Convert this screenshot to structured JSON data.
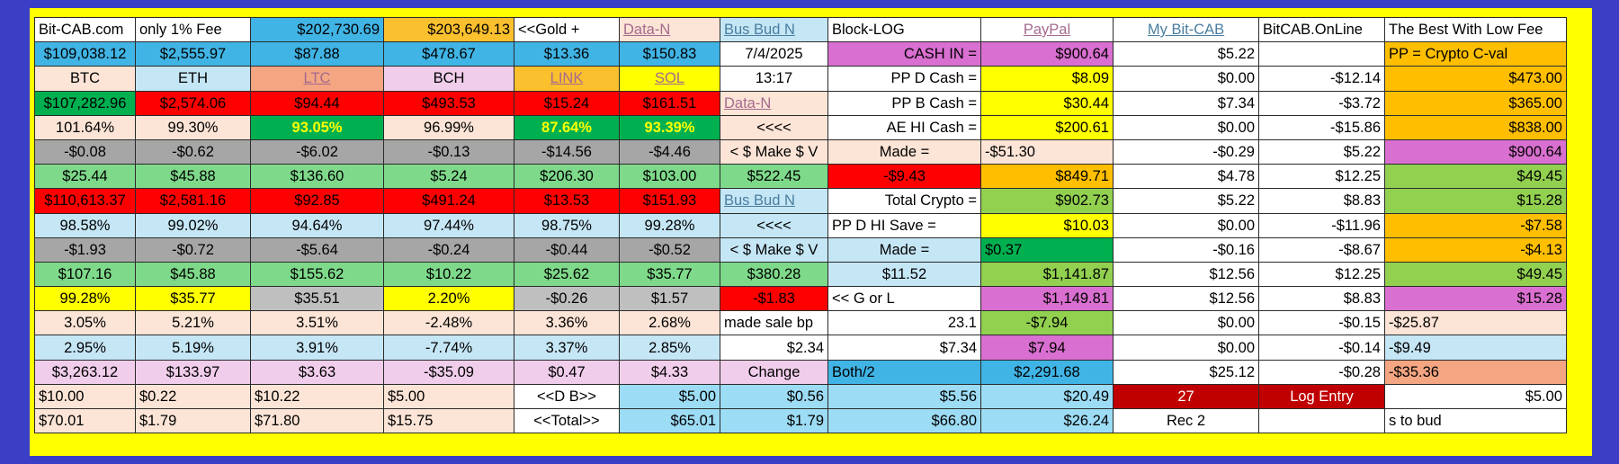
{
  "palette": {
    "frame": "#3b3fc6",
    "border": "#ffff00",
    "peach": "#fce4d6",
    "lightblue": "#c5e6f5",
    "skyblue": "#40b4e5",
    "midblue": "#9ddcf5",
    "orange": "#fbc02d",
    "amber": "#ffbf00",
    "lilac": "#f0cdea",
    "magenta": "#d96fd0",
    "gray": "#a6a6a6",
    "silver": "#bfbfbf",
    "green": "#7ed98a",
    "darkgreen": "#00b050",
    "lime": "#92d050",
    "yellow": "#ffff00",
    "red": "#ff0000",
    "darkred": "#c00000",
    "salmon": "#f4a582",
    "white": "#ffffff",
    "link_blue": "#4a7ea0",
    "link_mauve": "#a46a8e"
  },
  "columns": [
    112,
    128,
    148,
    145,
    117,
    112,
    120,
    170,
    147,
    162,
    140,
    202
  ],
  "rows": [
    [
      {
        "text": "Bit-CAB.com"
      },
      {
        "text": "only 1% Fee"
      },
      {
        "text": "$202,730.69",
        "bg": "skyblue",
        "align": "right"
      },
      {
        "text": "$203,649.13",
        "bg": "orange",
        "align": "right"
      },
      {
        "text": "<<Gold +"
      },
      {
        "text": "Data-N",
        "bg": "peach",
        "link": true,
        "color": "link_mauve"
      },
      {
        "text": "Bus Bud N",
        "bg": "lightblue",
        "link": true,
        "color": "link_blue"
      },
      {
        "text": "Block-LOG"
      },
      {
        "text": "PayPal",
        "align": "center",
        "link": true,
        "color": "link_mauve"
      },
      {
        "text": "My Bit-CAB",
        "align": "center",
        "link": true,
        "color": "link_blue"
      },
      {
        "text": "BitCAB.OnLine"
      },
      {
        "text": "The Best With Low Fee"
      }
    ],
    [
      {
        "text": "$109,038.12",
        "bg": "skyblue",
        "align": "center"
      },
      {
        "text": "$2,555.97",
        "bg": "skyblue",
        "align": "center"
      },
      {
        "text": "$87.88",
        "bg": "skyblue",
        "align": "center"
      },
      {
        "text": "$478.67",
        "bg": "skyblue",
        "align": "center"
      },
      {
        "text": "$13.36",
        "bg": "skyblue",
        "align": "center"
      },
      {
        "text": "$150.83",
        "bg": "skyblue",
        "align": "center"
      },
      {
        "text": "7/4/2025",
        "align": "center"
      },
      {
        "text": "CASH IN =",
        "bg": "magenta",
        "align": "right"
      },
      {
        "text": "$900.64",
        "bg": "magenta",
        "align": "right"
      },
      {
        "text": "$5.22",
        "align": "right"
      },
      {
        "text": ""
      },
      {
        "text": "PP = Crypto C-val",
        "bg": "amber"
      }
    ],
    [
      {
        "text": "BTC",
        "bg": "peach",
        "align": "center"
      },
      {
        "text": "ETH",
        "bg": "lightblue",
        "align": "center"
      },
      {
        "text": "LTC",
        "bg": "salmon",
        "align": "center",
        "link": true,
        "color": "link_mauve"
      },
      {
        "text": "BCH",
        "bg": "lilac",
        "align": "center"
      },
      {
        "text": "LINK",
        "bg": "orange",
        "align": "center",
        "link": true,
        "color": "link_mauve"
      },
      {
        "text": "SOL",
        "bg": "yellow",
        "align": "center",
        "link": true,
        "color": "link_mauve"
      },
      {
        "text": "13:17",
        "align": "center"
      },
      {
        "text": "PP  D  Cash =",
        "align": "right"
      },
      {
        "text": "$8.09",
        "bg": "yellow",
        "align": "right"
      },
      {
        "text": "$0.00",
        "align": "right"
      },
      {
        "text": "-$12.14",
        "align": "right"
      },
      {
        "text": "$473.00",
        "bg": "amber",
        "align": "right"
      }
    ],
    [
      {
        "text": "$107,282.96",
        "bg": "darkgreen",
        "align": "center"
      },
      {
        "text": "$2,574.06",
        "bg": "red",
        "align": "center"
      },
      {
        "text": "$94.44",
        "bg": "red",
        "align": "center"
      },
      {
        "text": "$493.53",
        "bg": "red",
        "align": "center"
      },
      {
        "text": "$15.24",
        "bg": "red",
        "align": "center"
      },
      {
        "text": "$161.51",
        "bg": "red",
        "align": "center"
      },
      {
        "text": "Data-N",
        "bg": "peach",
        "link": true,
        "color": "link_mauve"
      },
      {
        "text": "PP  B  Cash =",
        "align": "right"
      },
      {
        "text": "$30.44",
        "bg": "yellow",
        "align": "right"
      },
      {
        "text": "$7.34",
        "align": "right"
      },
      {
        "text": "-$3.72",
        "align": "right"
      },
      {
        "text": "$365.00",
        "bg": "amber",
        "align": "right"
      }
    ],
    [
      {
        "text": "101.64%",
        "bg": "peach",
        "align": "center"
      },
      {
        "text": "99.30%",
        "bg": "peach",
        "align": "center"
      },
      {
        "text": "93.05%",
        "bg": "darkgreen",
        "align": "center",
        "bold": true,
        "color": "yellow"
      },
      {
        "text": "96.99%",
        "bg": "peach",
        "align": "center"
      },
      {
        "text": "87.64%",
        "bg": "darkgreen",
        "align": "center",
        "bold": true,
        "color": "yellow"
      },
      {
        "text": "93.39%",
        "bg": "darkgreen",
        "align": "center",
        "bold": true,
        "color": "yellow"
      },
      {
        "text": "<<<<",
        "bg": "peach",
        "align": "center"
      },
      {
        "text": "AE HI Cash =",
        "align": "right"
      },
      {
        "text": "$200.61",
        "bg": "yellow",
        "align": "right"
      },
      {
        "text": "$0.00",
        "align": "right"
      },
      {
        "text": "-$15.86",
        "align": "right"
      },
      {
        "text": "$838.00",
        "bg": "amber",
        "align": "right"
      }
    ],
    [
      {
        "text": "-$0.08",
        "bg": "gray",
        "align": "center"
      },
      {
        "text": "-$0.62",
        "bg": "gray",
        "align": "center"
      },
      {
        "text": "-$6.02",
        "bg": "gray",
        "align": "center"
      },
      {
        "text": "-$0.13",
        "bg": "gray",
        "align": "center"
      },
      {
        "text": "-$14.56",
        "bg": "gray",
        "align": "center"
      },
      {
        "text": "-$4.46",
        "bg": "gray",
        "align": "center"
      },
      {
        "text": "< $ Make $ V",
        "bg": "peach",
        "align": "center"
      },
      {
        "text": "Made =",
        "bg": "peach",
        "align": "center"
      },
      {
        "text": "-$51.30",
        "bg": "peach"
      },
      {
        "text": "-$0.29",
        "align": "right"
      },
      {
        "text": "$5.22",
        "align": "right"
      },
      {
        "text": "$900.64",
        "bg": "magenta",
        "align": "right"
      }
    ],
    [
      {
        "text": "$25.44",
        "bg": "green",
        "align": "center"
      },
      {
        "text": "$45.88",
        "bg": "green",
        "align": "center"
      },
      {
        "text": "$136.60",
        "bg": "green",
        "align": "center"
      },
      {
        "text": "$5.24",
        "bg": "green",
        "align": "center"
      },
      {
        "text": "$206.30",
        "bg": "green",
        "align": "center"
      },
      {
        "text": "$103.00",
        "bg": "green",
        "align": "center"
      },
      {
        "text": "$522.45",
        "bg": "green",
        "align": "center"
      },
      {
        "text": "-$9.43",
        "bg": "red",
        "align": "center"
      },
      {
        "text": "$849.71",
        "bg": "amber",
        "align": "right"
      },
      {
        "text": "$4.78",
        "align": "right"
      },
      {
        "text": "$12.25",
        "align": "right"
      },
      {
        "text": "$49.45",
        "bg": "lime",
        "align": "right"
      }
    ],
    [
      {
        "text": "$110,613.37",
        "bg": "red",
        "align": "center"
      },
      {
        "text": "$2,581.16",
        "bg": "red",
        "align": "center"
      },
      {
        "text": "$92.85",
        "bg": "red",
        "align": "center"
      },
      {
        "text": "$491.24",
        "bg": "red",
        "align": "center"
      },
      {
        "text": "$13.53",
        "bg": "red",
        "align": "center"
      },
      {
        "text": "$151.93",
        "bg": "red",
        "align": "center"
      },
      {
        "text": "Bus Bud N",
        "bg": "lightblue",
        "link": true,
        "color": "link_blue"
      },
      {
        "text": "Total Crypto =",
        "align": "right"
      },
      {
        "text": "$902.73",
        "bg": "lime",
        "align": "right"
      },
      {
        "text": "$5.22",
        "align": "right"
      },
      {
        "text": "$8.83",
        "align": "right"
      },
      {
        "text": "$15.28",
        "bg": "lime",
        "align": "right"
      }
    ],
    [
      {
        "text": "98.58%",
        "bg": "lightblue",
        "align": "center"
      },
      {
        "text": "99.02%",
        "bg": "lightblue",
        "align": "center"
      },
      {
        "text": "94.64%",
        "bg": "lightblue",
        "align": "center"
      },
      {
        "text": "97.44%",
        "bg": "lightblue",
        "align": "center"
      },
      {
        "text": "98.75%",
        "bg": "lightblue",
        "align": "center"
      },
      {
        "text": "99.28%",
        "bg": "lightblue",
        "align": "center"
      },
      {
        "text": "<<<<",
        "bg": "lightblue",
        "align": "center"
      },
      {
        "text": "PP D HI Save ="
      },
      {
        "text": "$10.03",
        "bg": "yellow",
        "align": "right"
      },
      {
        "text": "$0.00",
        "align": "right"
      },
      {
        "text": "-$11.96",
        "align": "right"
      },
      {
        "text": "-$7.58",
        "bg": "amber",
        "align": "right"
      }
    ],
    [
      {
        "text": "-$1.93",
        "bg": "gray",
        "align": "center"
      },
      {
        "text": "-$0.72",
        "bg": "gray",
        "align": "center"
      },
      {
        "text": "-$5.64",
        "bg": "gray",
        "align": "center"
      },
      {
        "text": "-$0.24",
        "bg": "gray",
        "align": "center"
      },
      {
        "text": "-$0.44",
        "bg": "gray",
        "align": "center"
      },
      {
        "text": "-$0.52",
        "bg": "gray",
        "align": "center"
      },
      {
        "text": "< $ Make $ V",
        "bg": "lightblue",
        "align": "center"
      },
      {
        "text": "Made =",
        "bg": "lightblue",
        "align": "center"
      },
      {
        "text": "$0.37",
        "bg": "darkgreen"
      },
      {
        "text": "-$0.16",
        "align": "right"
      },
      {
        "text": "-$8.67",
        "align": "right"
      },
      {
        "text": "-$4.13",
        "bg": "amber",
        "align": "right"
      }
    ],
    [
      {
        "text": "$107.16",
        "bg": "green",
        "align": "center"
      },
      {
        "text": "$45.88",
        "bg": "green",
        "align": "center"
      },
      {
        "text": "$155.62",
        "bg": "green",
        "align": "center"
      },
      {
        "text": "$10.22",
        "bg": "green",
        "align": "center"
      },
      {
        "text": "$25.62",
        "bg": "green",
        "align": "center"
      },
      {
        "text": "$35.77",
        "bg": "green",
        "align": "center"
      },
      {
        "text": "$380.28",
        "bg": "green",
        "align": "center"
      },
      {
        "text": "$11.52",
        "bg": "lightblue",
        "align": "center"
      },
      {
        "text": "$1,141.87",
        "bg": "lime",
        "align": "right"
      },
      {
        "text": "$12.56",
        "align": "right"
      },
      {
        "text": "$12.25",
        "align": "right"
      },
      {
        "text": "$49.45",
        "bg": "lime",
        "align": "right"
      }
    ],
    [
      {
        "text": "99.28%",
        "bg": "yellow",
        "align": "center"
      },
      {
        "text": "$35.77",
        "bg": "yellow",
        "align": "center"
      },
      {
        "text": "$35.51",
        "bg": "silver",
        "align": "center"
      },
      {
        "text": "2.20%",
        "bg": "yellow",
        "align": "center"
      },
      {
        "text": "-$0.26",
        "bg": "silver",
        "align": "center"
      },
      {
        "text": "$1.57",
        "bg": "silver",
        "align": "center"
      },
      {
        "text": "-$1.83",
        "bg": "red",
        "align": "center"
      },
      {
        "text": "<< G or L"
      },
      {
        "text": "$1,149.81",
        "bg": "magenta",
        "align": "right"
      },
      {
        "text": "$12.56",
        "align": "right"
      },
      {
        "text": "$8.83",
        "align": "right"
      },
      {
        "text": "$15.28",
        "bg": "magenta",
        "align": "right"
      }
    ],
    [
      {
        "text": "3.05%",
        "bg": "peach",
        "align": "center"
      },
      {
        "text": "5.21%",
        "bg": "peach",
        "align": "center"
      },
      {
        "text": "3.51%",
        "bg": "peach",
        "align": "center"
      },
      {
        "text": "-2.48%",
        "bg": "peach",
        "align": "center"
      },
      {
        "text": "3.36%",
        "bg": "peach",
        "align": "center"
      },
      {
        "text": "2.68%",
        "bg": "peach",
        "align": "center"
      },
      {
        "text": "made sale bp"
      },
      {
        "text": "23.1",
        "align": "right"
      },
      {
        "text": "-$7.94",
        "bg": "lime",
        "align": "center"
      },
      {
        "text": "$0.00",
        "align": "right"
      },
      {
        "text": "-$0.15",
        "align": "right"
      },
      {
        "text": "-$25.87",
        "bg": "peach"
      }
    ],
    [
      {
        "text": "2.95%",
        "bg": "lightblue",
        "align": "center"
      },
      {
        "text": "5.19%",
        "bg": "lightblue",
        "align": "center"
      },
      {
        "text": "3.91%",
        "bg": "lightblue",
        "align": "center"
      },
      {
        "text": "-7.74%",
        "bg": "lightblue",
        "align": "center"
      },
      {
        "text": "3.37%",
        "bg": "lightblue",
        "align": "center"
      },
      {
        "text": "2.85%",
        "bg": "lightblue",
        "align": "center"
      },
      {
        "text": "$2.34",
        "align": "right"
      },
      {
        "text": "$7.34",
        "align": "right"
      },
      {
        "text": "$7.94",
        "bg": "magenta",
        "align": "center"
      },
      {
        "text": "$0.00",
        "align": "right"
      },
      {
        "text": "-$0.14",
        "align": "right"
      },
      {
        "text": "-$9.49",
        "bg": "lightblue"
      }
    ],
    [
      {
        "text": "$3,263.12",
        "bg": "lilac",
        "align": "center"
      },
      {
        "text": "$133.97",
        "bg": "lilac",
        "align": "center"
      },
      {
        "text": "$3.63",
        "bg": "lilac",
        "align": "center"
      },
      {
        "text": "-$35.09",
        "bg": "lilac",
        "align": "center"
      },
      {
        "text": "$0.47",
        "bg": "lilac",
        "align": "center"
      },
      {
        "text": "$4.33",
        "bg": "lilac",
        "align": "center"
      },
      {
        "text": "Change",
        "bg": "lilac",
        "align": "center"
      },
      {
        "text": "Both/2",
        "bg": "skyblue"
      },
      {
        "text": "$2,291.68",
        "bg": "skyblue",
        "align": "center"
      },
      {
        "text": "$25.12",
        "align": "right"
      },
      {
        "text": "-$0.28",
        "align": "right"
      },
      {
        "text": "-$35.36",
        "bg": "salmon"
      }
    ],
    [
      {
        "text": "$10.00",
        "bg": "peach"
      },
      {
        "text": "$0.22",
        "bg": "peach"
      },
      {
        "text": "$10.22",
        "bg": "peach"
      },
      {
        "text": "$5.00",
        "bg": "peach"
      },
      {
        "text": "<<D  B>>",
        "align": "center"
      },
      {
        "text": "$5.00",
        "bg": "midblue",
        "align": "right"
      },
      {
        "text": "$0.56",
        "bg": "midblue",
        "align": "right"
      },
      {
        "text": "$5.56",
        "bg": "midblue",
        "align": "right"
      },
      {
        "text": "$20.49",
        "bg": "midblue",
        "align": "right"
      },
      {
        "text": "27",
        "bg": "darkred",
        "align": "center",
        "color": "white"
      },
      {
        "text": "Log Entry",
        "bg": "darkred",
        "align": "center",
        "color": "white"
      },
      {
        "text": "$5.00",
        "align": "right"
      }
    ],
    [
      {
        "text": "$70.01",
        "bg": "peach"
      },
      {
        "text": "$1.79",
        "bg": "peach"
      },
      {
        "text": "$71.80",
        "bg": "peach"
      },
      {
        "text": "$15.75",
        "bg": "peach"
      },
      {
        "text": "<<Total>>",
        "align": "center"
      },
      {
        "text": "$65.01",
        "bg": "midblue",
        "align": "right"
      },
      {
        "text": "$1.79",
        "bg": "midblue",
        "align": "right"
      },
      {
        "text": "$66.80",
        "bg": "midblue",
        "align": "right"
      },
      {
        "text": "$26.24",
        "bg": "midblue",
        "align": "right"
      },
      {
        "text": "Rec 2",
        "align": "center"
      },
      {
        "text": ""
      },
      {
        "text": "s to bud"
      }
    ]
  ]
}
